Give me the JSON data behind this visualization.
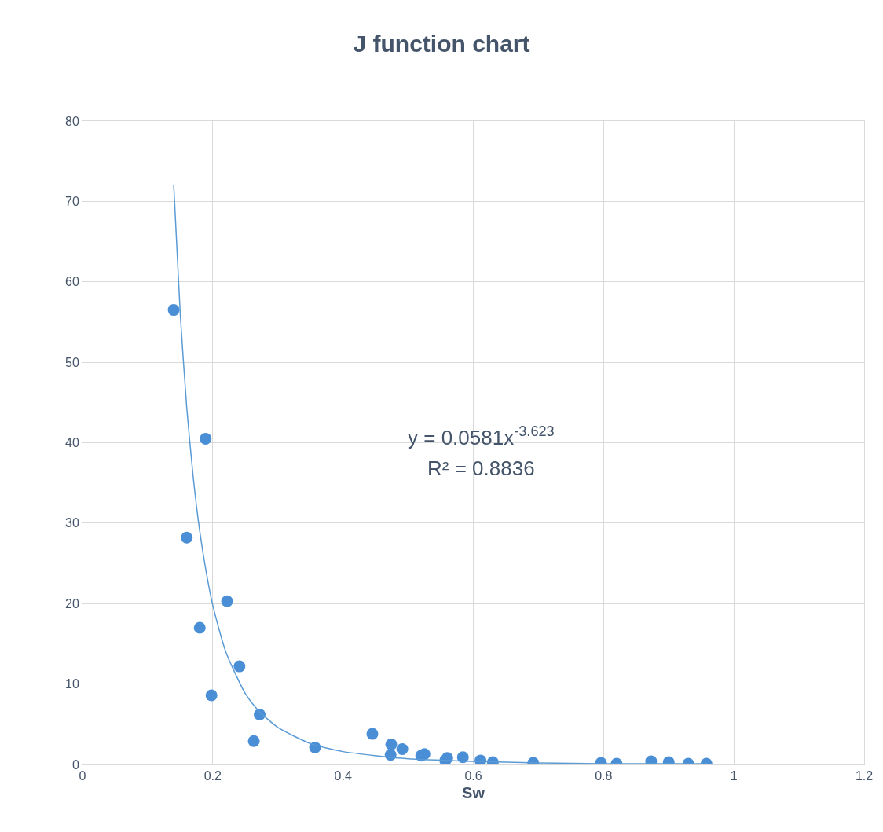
{
  "chart_data": {
    "type": "scatter",
    "title": "J function chart",
    "xlabel": "Sw",
    "series": [
      {
        "color": "#4a8fd6",
        "marker": "circle",
        "x": [
          0.14,
          0.189,
          0.16,
          0.222,
          0.18,
          0.241,
          0.198,
          0.272,
          0.263,
          0.357,
          0.445,
          0.474,
          0.491,
          0.473,
          0.52,
          0.525,
          0.56,
          0.557,
          0.584,
          0.611,
          0.63,
          0.692,
          0.796,
          0.82,
          0.873,
          0.9,
          0.93,
          0.958
        ],
        "values": [
          56.5,
          40.5,
          28.2,
          20.3,
          17.0,
          12.2,
          8.6,
          6.2,
          2.9,
          2.1,
          3.8,
          2.5,
          1.9,
          1.2,
          1.1,
          1.3,
          0.8,
          0.5,
          0.9,
          0.5,
          0.3,
          0.2,
          0.2,
          0.1,
          0.4,
          0.3,
          0.1,
          0.1
        ]
      },
      {
        "type": "line",
        "color": "#5b9bd5",
        "line_style": "solid",
        "x": [
          0.14,
          0.15,
          0.16,
          0.17,
          0.18,
          0.19,
          0.2,
          0.22,
          0.25,
          0.27,
          0.3,
          0.35,
          0.4,
          0.5,
          0.6,
          0.7,
          0.8,
          0.96
        ],
        "values": [
          72.1,
          56.1,
          44.4,
          35.7,
          29.0,
          23.9,
          19.8,
          14.0,
          8.8,
          6.7,
          4.6,
          2.6,
          1.6,
          0.7,
          0.4,
          0.2,
          0.1,
          0.1
        ]
      }
    ],
    "xlim": [
      0,
      1.2
    ],
    "xticks": [
      0,
      0.2,
      0.4,
      0.6,
      0.8,
      1,
      1.2
    ],
    "ylim": [
      0,
      80
    ],
    "yticks": [
      0,
      10,
      20,
      30,
      40,
      50,
      60,
      70,
      80
    ],
    "grid": true,
    "annotations": [
      "y = 0.0581x$^{-3.623}$",
      "R² = 0.8836"
    ]
  }
}
